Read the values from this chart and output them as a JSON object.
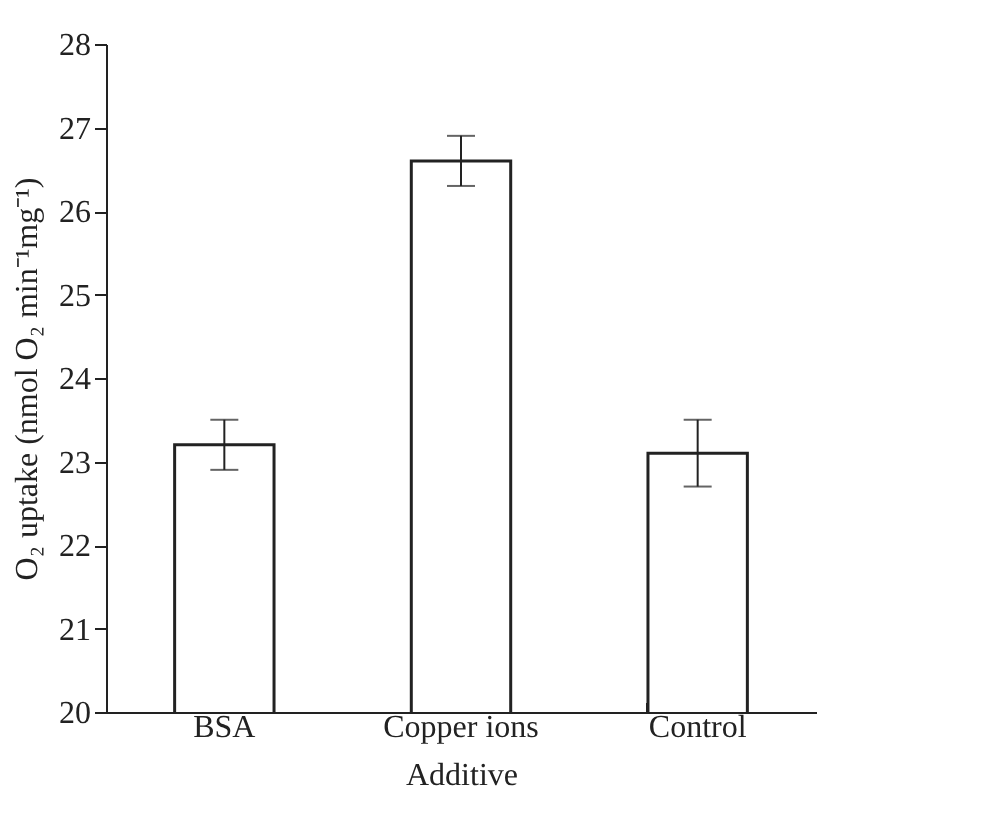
{
  "chart_data": {
    "type": "bar",
    "xlabel": "Additive",
    "ylabel": "O₂ uptake (nmol O₂ min⁻¹mg⁻¹)",
    "categories": [
      "BSA",
      "Copper ions",
      "Control"
    ],
    "values": [
      23.2,
      26.6,
      23.1
    ],
    "errors": [
      0.3,
      0.3,
      0.4
    ],
    "color": "#ffffff",
    "ylim": [
      20,
      28
    ],
    "yticks": [
      20,
      21,
      22,
      23,
      24,
      25,
      26,
      27,
      28
    ],
    "grid": false
  }
}
